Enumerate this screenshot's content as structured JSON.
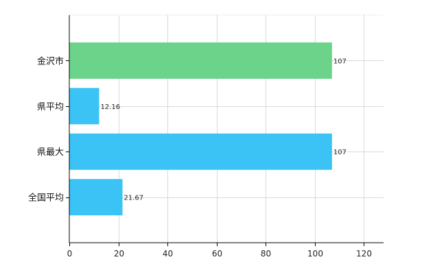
{
  "chart_data": {
    "type": "bar",
    "orientation": "horizontal",
    "categories": [
      "金沢市",
      "県平均",
      "県最大",
      "全国平均"
    ],
    "values": [
      107,
      12.16,
      107,
      21.67
    ],
    "value_labels": [
      "107",
      "12.16",
      "107",
      "21.67"
    ],
    "bar_colors": [
      "#6cd48a",
      "#3cc3f5",
      "#3cc3f5",
      "#3cc3f5"
    ],
    "xlim": [
      0,
      128
    ],
    "xticks": [
      0,
      20,
      40,
      60,
      80,
      100,
      120
    ],
    "grid": true,
    "legend": "none"
  }
}
